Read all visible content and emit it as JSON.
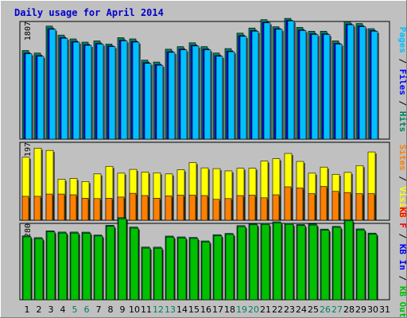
{
  "chart_data": {
    "type": "bar",
    "title": "Daily usage for April 2014",
    "colors": {
      "background": "#c0c0c0",
      "frame": "#000000",
      "title": "#0000cc",
      "hits": "#00805c",
      "files": "#0000ff",
      "pages": "#00c0ff",
      "visits": "#ffff00",
      "sites": "#ff8000",
      "kbin": "#00c000",
      "kbout": "#00805c",
      "kbf": "#ff0000",
      "weekend_day": "#00805c",
      "weekday": "#000000",
      "separator": "#000000"
    },
    "days": [
      "1",
      "2",
      "3",
      "4",
      "5",
      "6",
      "7",
      "8",
      "9",
      "10",
      "11",
      "12",
      "13",
      "14",
      "15",
      "16",
      "17",
      "18",
      "19",
      "20",
      "21",
      "22",
      "23",
      "24",
      "25",
      "26",
      "27",
      "28",
      "29",
      "30",
      "31"
    ],
    "weekend_days": [
      "5",
      "6",
      "12",
      "13",
      "19",
      "20",
      "26",
      "27"
    ],
    "top_panel": {
      "ymax_label": "1807",
      "ymax": 1807,
      "right_label_parts": [
        {
          "text": "Pages",
          "color_key": "pages"
        },
        {
          "text": " / ",
          "color_key": "separator"
        },
        {
          "text": "Files",
          "color_key": "files"
        },
        {
          "text": " / ",
          "color_key": "separator"
        },
        {
          "text": "Hits",
          "color_key": "hits"
        }
      ],
      "series": [
        {
          "name": "Hits",
          "color_key": "hits",
          "values": [
            1380,
            1340,
            1760,
            1620,
            1560,
            1510,
            1530,
            1480,
            1580,
            1560,
            1230,
            1200,
            1400,
            1440,
            1500,
            1440,
            1340,
            1410,
            1650,
            1730,
            1860,
            1750,
            1880,
            1740,
            1680,
            1680,
            1530,
            1830,
            1800,
            1720
          ]
        },
        {
          "name": "Files",
          "color_key": "files",
          "values": [
            1340,
            1300,
            1720,
            1580,
            1520,
            1470,
            1490,
            1450,
            1540,
            1520,
            1190,
            1160,
            1360,
            1400,
            1460,
            1400,
            1300,
            1370,
            1610,
            1690,
            1820,
            1720,
            1850,
            1700,
            1640,
            1640,
            1490,
            1790,
            1760,
            1690
          ]
        },
        {
          "name": "Pages",
          "color_key": "pages",
          "values": [
            1330,
            1290,
            1710,
            1570,
            1510,
            1460,
            1480,
            1440,
            1530,
            1510,
            1180,
            1150,
            1350,
            1390,
            1450,
            1390,
            1290,
            1360,
            1600,
            1680,
            1810,
            1710,
            1840,
            1690,
            1630,
            1630,
            1480,
            1780,
            1750,
            1680
          ]
        }
      ]
    },
    "middle_panel": {
      "ymax_label": "197",
      "ymax": 197,
      "right_label_parts": [
        {
          "text": "Sites",
          "color_key": "sites"
        },
        {
          "text": " / ",
          "color_key": "separator"
        },
        {
          "text": "Visits",
          "color_key": "visits"
        }
      ],
      "series": [
        {
          "name": "Visits",
          "color_key": "visits",
          "values": [
            166,
            190,
            184,
            108,
            110,
            102,
            122,
            142,
            124,
            134,
            127,
            125,
            122,
            133,
            152,
            138,
            136,
            130,
            137,
            137,
            156,
            162,
            176,
            155,
            124,
            140,
            121,
            126,
            144,
            180
          ]
        },
        {
          "name": "Sites",
          "color_key": "sites",
          "values": [
            63,
            63,
            69,
            69,
            67,
            58,
            57,
            58,
            61,
            71,
            65,
            58,
            64,
            66,
            66,
            65,
            55,
            57,
            65,
            66,
            59,
            67,
            88,
            85,
            70,
            89,
            76,
            73,
            70,
            70
          ]
        }
      ]
    },
    "bottom_panel": {
      "ymax_label": "69280",
      "ymax": 69280,
      "right_label_parts": [
        {
          "text": "KB F",
          "color_key": "kbf"
        },
        {
          "text": " / ",
          "color_key": "separator"
        },
        {
          "text": "KB In",
          "color_key": "files"
        },
        {
          "text": " / ",
          "color_key": "separator"
        },
        {
          "text": "KB Out",
          "color_key": "kbin"
        }
      ],
      "series": [
        {
          "name": "KB Out",
          "color_key": "kbout",
          "values": [
            60500,
            58800,
            65300,
            64100,
            64100,
            64000,
            61300,
            70500,
            77700,
            68800,
            49900,
            49800,
            60300,
            59500,
            59000,
            55700,
            61600,
            62800,
            70200,
            71900,
            72300,
            73800,
            72400,
            71200,
            71700,
            66900,
            69500,
            75700,
            67100,
            63100
          ]
        },
        {
          "name": "KB In",
          "color_key": "kbin",
          "values": [
            59500,
            57800,
            64300,
            63100,
            63100,
            63000,
            60300,
            69500,
            76700,
            67800,
            48900,
            48800,
            59300,
            58500,
            58000,
            54700,
            60600,
            61800,
            69200,
            70900,
            71300,
            72800,
            71400,
            70200,
            70700,
            65900,
            68500,
            74700,
            66100,
            62100
          ]
        }
      ]
    }
  }
}
